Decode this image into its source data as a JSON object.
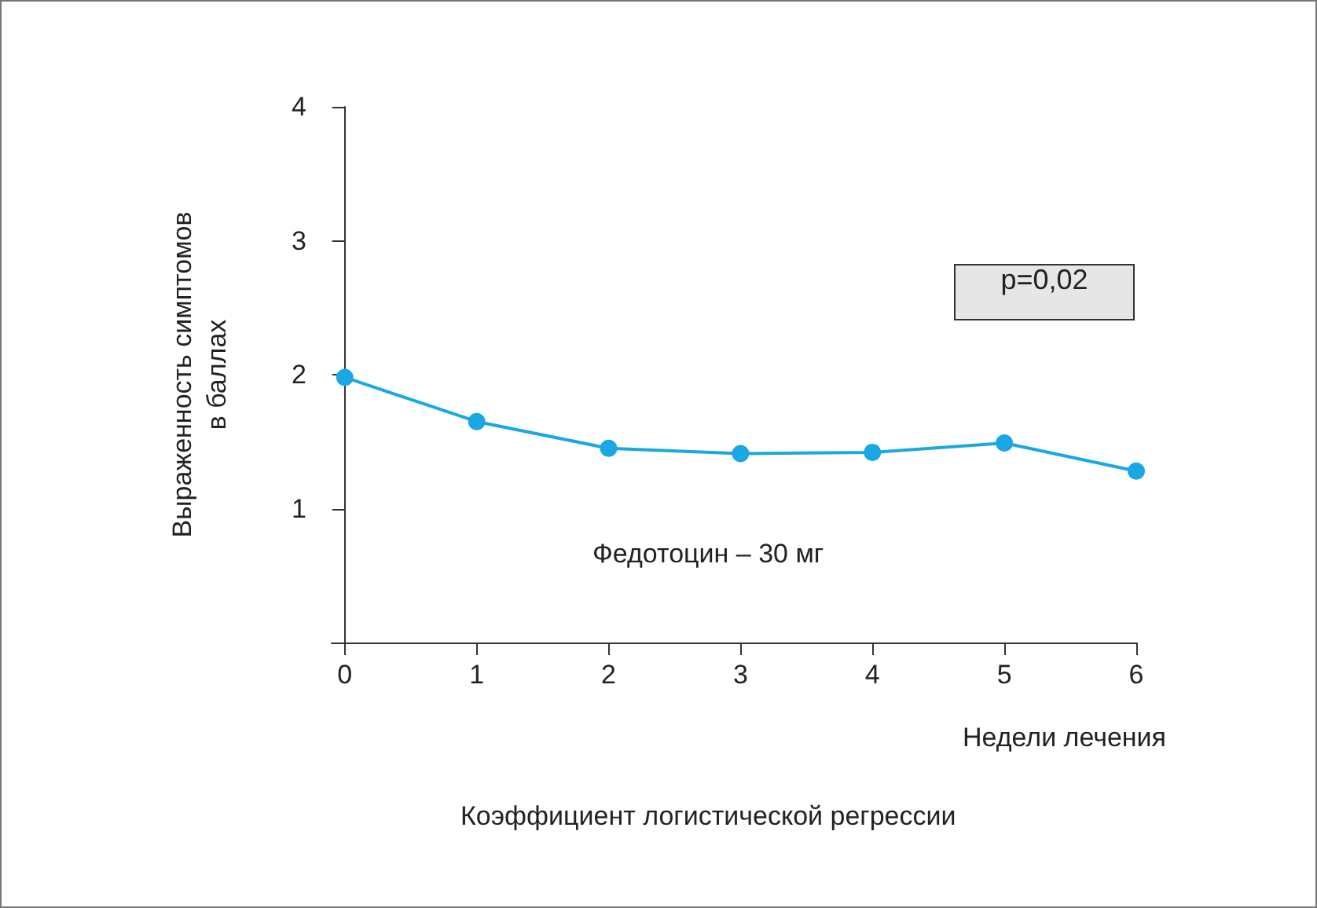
{
  "chart_data": {
    "type": "line",
    "xlabel": "Недели лечения",
    "ylabel": "Выраженность симптомов\nв баллах",
    "x": [
      0,
      1,
      2,
      3,
      4,
      5,
      6
    ],
    "series": [
      {
        "color": "#1aa7e4",
        "values": [
          1.98,
          1.65,
          1.45,
          1.41,
          1.42,
          1.49,
          1.28
        ]
      }
    ],
    "xlim": [
      -0.1,
      6
    ],
    "xticks": [
      0,
      1,
      2,
      3,
      4,
      5,
      6
    ],
    "ylim": [
      0,
      4
    ],
    "yticks": [
      1,
      2,
      3,
      4
    ],
    "annotations": [
      "p=0,02",
      "Федотоцин – 30 мг",
      "Коэффициент логистической регрессии"
    ],
    "grid": false,
    "marker": "circle",
    "line_style": "solid"
  }
}
